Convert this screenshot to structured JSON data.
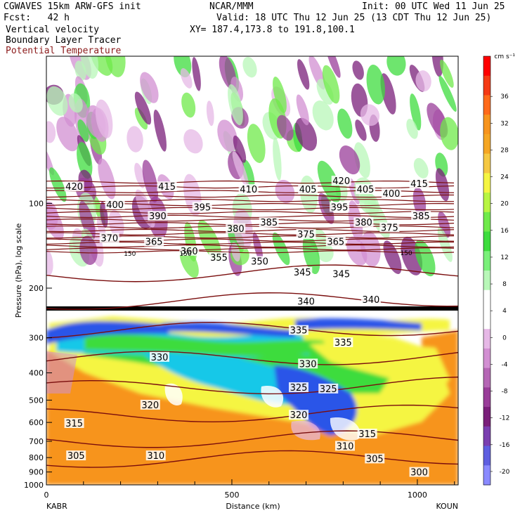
{
  "header": {
    "model": "CGWAVES 15km ARW-GFS init",
    "forecast": "Fcst:   42 h",
    "field1": "Vertical velocity",
    "field2": "Boundary Layer Tracer",
    "field3": "Potential Temperature",
    "org": "NCAR/MMM",
    "init": "Init: 00 UTC Wed 11 Jun 25",
    "valid": "Valid: 18 UTC Thu 12 Jun 25 (13 CDT Thu 12 Jun 25)",
    "xy": "XY= 187.4,173.8 to 191.8,100.1"
  },
  "colors": {
    "contour": "#7a0d0d",
    "field3_text": "#8b1a1a",
    "tracer_blue": "#2b55e8",
    "tracer_cyan": "#18c8e8",
    "tracer_green": "#3ddc3d",
    "tracer_yellow": "#f5f542",
    "tracer_orange": "#f7941d",
    "tropopause": "#000000"
  },
  "chart_data": {
    "type": "heatmap",
    "xlabel": "Distance (km)",
    "ylabel": "Pressure (hPa), log scale",
    "xlim": [
      0,
      1110
    ],
    "ylim": [
      1000,
      30
    ],
    "y_scale": "log",
    "x_ticks": [
      "0",
      "500",
      "1000"
    ],
    "x_tick_values": [
      0,
      500,
      1000
    ],
    "y_ticks": [
      "100",
      "200",
      "300",
      "400",
      "500",
      "600",
      "700",
      "800",
      "900",
      "1000"
    ],
    "y_tick_values": [
      100,
      200,
      300,
      400,
      500,
      600,
      700,
      800,
      900,
      1000
    ],
    "endpoints": {
      "left": "KABR",
      "right": "KOUN"
    },
    "colorbar": {
      "unit": "cm s⁻¹",
      "labels": [
        "36",
        "32",
        "28",
        "24",
        "20",
        "16",
        "12",
        "8",
        "4",
        "0",
        "-4",
        "-8",
        "-12",
        "-16",
        "-20"
      ],
      "label_values": [
        36,
        32,
        28,
        24,
        20,
        16,
        12,
        8,
        4,
        0,
        -4,
        -8,
        -12,
        -16,
        -20
      ],
      "colors": [
        "#ff0000",
        "#f53a14",
        "#ff6a1a",
        "#f7941d",
        "#f5a623",
        "#f5c842",
        "#f5f542",
        "#b8f542",
        "#6fea4a",
        "#3ddc3d",
        "#7af07a",
        "#b8f7b8",
        "#ffffff",
        "#ffffff",
        "#e6b8e6",
        "#d28fd2",
        "#b566b5",
        "#993d99",
        "#7a1f7a",
        "#7a3fb0",
        "#5e5ee0",
        "#8a8aff"
      ]
    },
    "contour_labels": [
      {
        "text": "420",
        "x": 75,
        "p": 88
      },
      {
        "text": "415",
        "x": 325,
        "p": 88
      },
      {
        "text": "410",
        "x": 545,
        "p": 90
      },
      {
        "text": "405",
        "x": 705,
        "p": 90
      },
      {
        "text": "420",
        "x": 795,
        "p": 84
      },
      {
        "text": "405",
        "x": 860,
        "p": 90
      },
      {
        "text": "400",
        "x": 930,
        "p": 93
      },
      {
        "text": "415",
        "x": 1005,
        "p": 86
      },
      {
        "text": "400",
        "x": 185,
        "p": 102
      },
      {
        "text": "395",
        "x": 420,
        "p": 104
      },
      {
        "text": "390",
        "x": 300,
        "p": 112
      },
      {
        "text": "395",
        "x": 790,
        "p": 104
      },
      {
        "text": "385",
        "x": 600,
        "p": 118
      },
      {
        "text": "380",
        "x": 510,
        "p": 124
      },
      {
        "text": "380",
        "x": 855,
        "p": 118
      },
      {
        "text": "375",
        "x": 925,
        "p": 123
      },
      {
        "text": "385",
        "x": 1010,
        "p": 112
      },
      {
        "text": "375",
        "x": 700,
        "p": 130
      },
      {
        "text": "370",
        "x": 170,
        "p": 134
      },
      {
        "text": "365",
        "x": 290,
        "p": 138
      },
      {
        "text": "365",
        "x": 780,
        "p": 138
      },
      {
        "text": "360",
        "x": 385,
        "p": 149
      },
      {
        "text": "355",
        "x": 465,
        "p": 157
      },
      {
        "text": "350",
        "x": 575,
        "p": 162
      },
      {
        "text": "345",
        "x": 690,
        "p": 177
      },
      {
        "text": "345",
        "x": 795,
        "p": 180
      },
      {
        "text": "340",
        "x": 700,
        "p": 225
      },
      {
        "text": "340",
        "x": 875,
        "p": 222
      },
      {
        "text": "335",
        "x": 680,
        "p": 285
      },
      {
        "text": "335",
        "x": 800,
        "p": 315
      },
      {
        "text": "330",
        "x": 305,
        "p": 355
      },
      {
        "text": "330",
        "x": 705,
        "p": 375
      },
      {
        "text": "325",
        "x": 680,
        "p": 455
      },
      {
        "text": "325",
        "x": 760,
        "p": 460
      },
      {
        "text": "320",
        "x": 280,
        "p": 525
      },
      {
        "text": "320",
        "x": 680,
        "p": 570
      },
      {
        "text": "315",
        "x": 75,
        "p": 610
      },
      {
        "text": "315",
        "x": 865,
        "p": 665
      },
      {
        "text": "310",
        "x": 295,
        "p": 795
      },
      {
        "text": "310",
        "x": 805,
        "p": 735
      },
      {
        "text": "305",
        "x": 80,
        "p": 795
      },
      {
        "text": "305",
        "x": 885,
        "p": 815
      },
      {
        "text": "300",
        "x": 1005,
        "p": 910
      }
    ],
    "tropopause_labels": [
      {
        "text": "150",
        "x": 225,
        "p": 151
      },
      {
        "text": "150",
        "x": 375,
        "p": 151
      },
      {
        "text": "150",
        "x": 970,
        "p": 150
      }
    ]
  }
}
